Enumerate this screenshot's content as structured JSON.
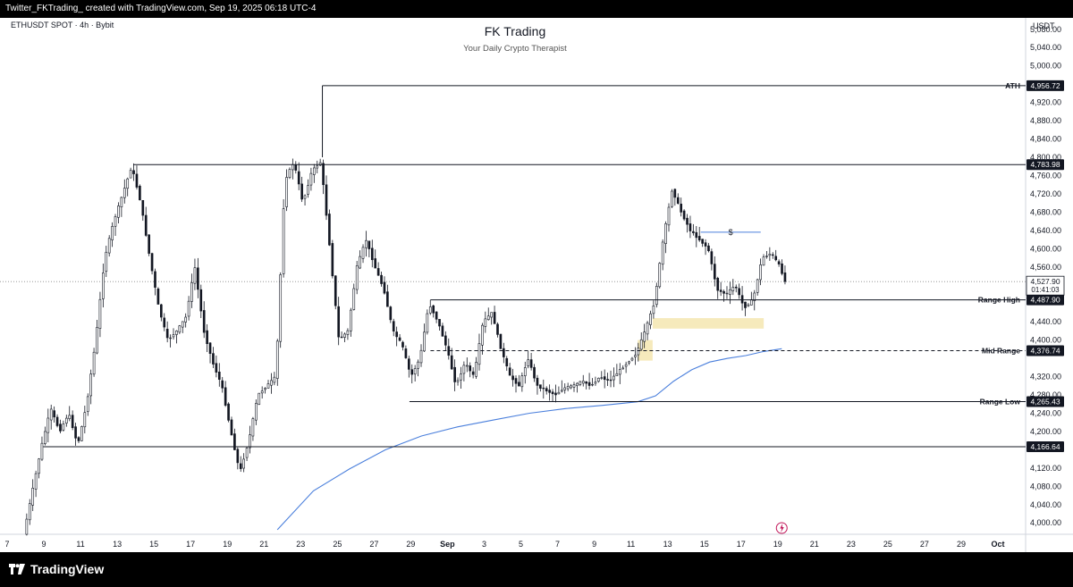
{
  "header": {
    "caption": "Twitter_FKTrading_ created with TradingView.com, Sep 19, 2025 06:18 UTC-4"
  },
  "footer": {
    "brand": "TradingView",
    "logo_icon": "tradingview-logo-icon"
  },
  "chart_data": {
    "type": "candlestick",
    "symbol": "ETHUSDT SPOT · 4h · Bybit",
    "title": "FK Trading",
    "subtitle": "Your Daily Crypto Therapist",
    "axis_unit": "USDT",
    "ylim": [
      3975,
      5105
    ],
    "y_ticks": [
      "5,080.00",
      "5,040.00",
      "5,000.00",
      "4,920.00",
      "4,880.00",
      "4,840.00",
      "4,800.00",
      "4,760.00",
      "4,720.00",
      "4,680.00",
      "4,640.00",
      "4,600.00",
      "4,560.00",
      "4,440.00",
      "4,400.00",
      "4,320.00",
      "4,280.00",
      "4,240.00",
      "4,200.00",
      "4,120.00",
      "4,080.00",
      "4,040.00",
      "4,000.00"
    ],
    "y_tick_values": [
      5080,
      5040,
      5000,
      4920,
      4880,
      4840,
      4800,
      4760,
      4720,
      4680,
      4640,
      4600,
      4560,
      4440,
      4400,
      4320,
      4280,
      4240,
      4200,
      4120,
      4080,
      4040,
      4000
    ],
    "x_labels": [
      "7",
      "9",
      "11",
      "13",
      "15",
      "17",
      "19",
      "21",
      "23",
      "25",
      "27",
      "29",
      "Sep",
      "3",
      "5",
      "7",
      "9",
      "11",
      "13",
      "15",
      "17",
      "19",
      "21",
      "23",
      "25",
      "27",
      "29",
      "Oct"
    ],
    "x_range": [
      "2025-08-07",
      "2025-10-01"
    ],
    "levels": [
      {
        "label": "ATH",
        "value": 4956.72,
        "text": "4,956.72",
        "start": "2025-08-24T12:00",
        "style": "solid"
      },
      {
        "label": "",
        "value": 4783.98,
        "text": "4,783.98",
        "start": "2025-08-14T00:00",
        "style": "solid"
      },
      {
        "label": "Range High",
        "value": 4487.9,
        "text": "4,487.90",
        "start": "2025-08-30T12:00",
        "style": "solid"
      },
      {
        "label": "Mid Range",
        "value": 4376.74,
        "text": "4,376.74",
        "start": "2025-08-30T12:00",
        "style": "dashed"
      },
      {
        "label": "Range Low",
        "value": 4265.43,
        "text": "4,265.43",
        "start": "2025-08-29T08:00",
        "style": "solid"
      },
      {
        "label": "",
        "value": 4166.64,
        "text": "4,166.64",
        "start": "2025-08-09T00:00",
        "style": "solid"
      }
    ],
    "current_price": {
      "value": 4527.9,
      "text": "4,527.90",
      "countdown": "01:41:03"
    },
    "zones": [
      {
        "name": "demand-zone",
        "from": "2025-09-11T20:00",
        "to": "2025-09-18T00:00",
        "low": 4425,
        "high": 4448,
        "color": "#f5e6b0"
      },
      {
        "name": "fvg-zone",
        "from": "2025-09-11T00:00",
        "to": "2025-09-11T20:00",
        "low": 4355,
        "high": 4400,
        "color": "#f5e6b0"
      }
    ],
    "liquidity_marker": {
      "label": "$",
      "from": "2025-09-14T12:00",
      "to": "2025-09-17T20:00",
      "value": 4636
    },
    "moving_average": {
      "color": "#4a7fdc",
      "points": [
        [
          "2025-08-22T00:00",
          3985
        ],
        [
          "2025-08-24T00:00",
          4070
        ],
        [
          "2025-08-26T00:00",
          4118
        ],
        [
          "2025-08-28T00:00",
          4160
        ],
        [
          "2025-08-30T00:00",
          4190
        ],
        [
          "2025-09-01T00:00",
          4210
        ],
        [
          "2025-09-03T00:00",
          4225
        ],
        [
          "2025-09-05T00:00",
          4240
        ],
        [
          "2025-09-07T00:00",
          4250
        ],
        [
          "2025-09-09T00:00",
          4257
        ],
        [
          "2025-09-11T00:00",
          4265
        ],
        [
          "2025-09-12T00:00",
          4278
        ],
        [
          "2025-09-13T00:00",
          4310
        ],
        [
          "2025-09-14T00:00",
          4335
        ],
        [
          "2025-09-15T00:00",
          4352
        ],
        [
          "2025-09-16T00:00",
          4360
        ],
        [
          "2025-09-17T00:00",
          4366
        ],
        [
          "2025-09-18T00:00",
          4375
        ],
        [
          "2025-09-19T00:00",
          4381
        ]
      ]
    },
    "price_path": [
      [
        "2025-08-08T00:00",
        3975
      ],
      [
        "2025-08-09T00:00",
        4170
      ],
      [
        "2025-08-09T12:00",
        4250
      ],
      [
        "2025-08-10T00:00",
        4200
      ],
      [
        "2025-08-10T12:00",
        4240
      ],
      [
        "2025-08-11T00:00",
        4170
      ],
      [
        "2025-08-11T12:00",
        4260
      ],
      [
        "2025-08-12T00:00",
        4400
      ],
      [
        "2025-08-12T12:00",
        4580
      ],
      [
        "2025-08-13T00:00",
        4660
      ],
      [
        "2025-08-13T12:00",
        4720
      ],
      [
        "2025-08-14T00:00",
        4780
      ],
      [
        "2025-08-14T12:00",
        4700
      ],
      [
        "2025-08-15T00:00",
        4580
      ],
      [
        "2025-08-15T12:00",
        4470
      ],
      [
        "2025-08-16T00:00",
        4400
      ],
      [
        "2025-08-16T12:00",
        4420
      ],
      [
        "2025-08-17T00:00",
        4450
      ],
      [
        "2025-08-17T12:00",
        4560
      ],
      [
        "2025-08-18T00:00",
        4420
      ],
      [
        "2025-08-18T12:00",
        4350
      ],
      [
        "2025-08-19T00:00",
        4300
      ],
      [
        "2025-08-19T12:00",
        4200
      ],
      [
        "2025-08-20T00:00",
        4110
      ],
      [
        "2025-08-20T12:00",
        4180
      ],
      [
        "2025-08-21T00:00",
        4280
      ],
      [
        "2025-08-21T12:00",
        4300
      ],
      [
        "2025-08-22T00:00",
        4320
      ],
      [
        "2025-08-22T12:00",
        4750
      ],
      [
        "2025-08-23T00:00",
        4790
      ],
      [
        "2025-08-23T12:00",
        4700
      ],
      [
        "2025-08-24T00:00",
        4770
      ],
      [
        "2025-08-24T12:00",
        4790
      ],
      [
        "2025-08-25T00:00",
        4600
      ],
      [
        "2025-08-25T12:00",
        4400
      ],
      [
        "2025-08-26T00:00",
        4420
      ],
      [
        "2025-08-26T12:00",
        4560
      ],
      [
        "2025-08-27T00:00",
        4620
      ],
      [
        "2025-08-27T12:00",
        4560
      ],
      [
        "2025-08-28T00:00",
        4510
      ],
      [
        "2025-08-28T12:00",
        4420
      ],
      [
        "2025-08-29T00:00",
        4390
      ],
      [
        "2025-08-29T12:00",
        4320
      ],
      [
        "2025-08-30T00:00",
        4360
      ],
      [
        "2025-08-30T12:00",
        4480
      ],
      [
        "2025-08-31T00:00",
        4440
      ],
      [
        "2025-08-31T12:00",
        4380
      ],
      [
        "2025-09-01T00:00",
        4300
      ],
      [
        "2025-09-01T12:00",
        4350
      ],
      [
        "2025-09-02T00:00",
        4320
      ],
      [
        "2025-09-02T12:00",
        4440
      ],
      [
        "2025-09-03T00:00",
        4460
      ],
      [
        "2025-09-03T12:00",
        4380
      ],
      [
        "2025-09-04T00:00",
        4320
      ],
      [
        "2025-09-04T12:00",
        4300
      ],
      [
        "2025-09-05T00:00",
        4360
      ],
      [
        "2025-09-05T12:00",
        4300
      ],
      [
        "2025-09-06T00:00",
        4290
      ],
      [
        "2025-09-06T12:00",
        4280
      ],
      [
        "2025-09-07T00:00",
        4295
      ],
      [
        "2025-09-07T12:00",
        4300
      ],
      [
        "2025-09-08T00:00",
        4310
      ],
      [
        "2025-09-08T12:00",
        4300
      ],
      [
        "2025-09-09T00:00",
        4320
      ],
      [
        "2025-09-09T12:00",
        4310
      ],
      [
        "2025-09-10T00:00",
        4330
      ],
      [
        "2025-09-10T12:00",
        4350
      ],
      [
        "2025-09-11T00:00",
        4370
      ],
      [
        "2025-09-11T12:00",
        4420
      ],
      [
        "2025-09-12T00:00",
        4480
      ],
      [
        "2025-09-12T12:00",
        4620
      ],
      [
        "2025-09-13T00:00",
        4730
      ],
      [
        "2025-09-13T12:00",
        4680
      ],
      [
        "2025-09-14T00:00",
        4640
      ],
      [
        "2025-09-14T12:00",
        4620
      ],
      [
        "2025-09-15T00:00",
        4600
      ],
      [
        "2025-09-15T12:00",
        4510
      ],
      [
        "2025-09-16T00:00",
        4500
      ],
      [
        "2025-09-16T12:00",
        4520
      ],
      [
        "2025-09-17T00:00",
        4470
      ],
      [
        "2025-09-17T12:00",
        4490
      ],
      [
        "2025-09-18T00:00",
        4580
      ],
      [
        "2025-09-18T12:00",
        4590
      ],
      [
        "2025-09-19T00:00",
        4560
      ],
      [
        "2025-09-19T06:00",
        4527.9
      ]
    ]
  }
}
